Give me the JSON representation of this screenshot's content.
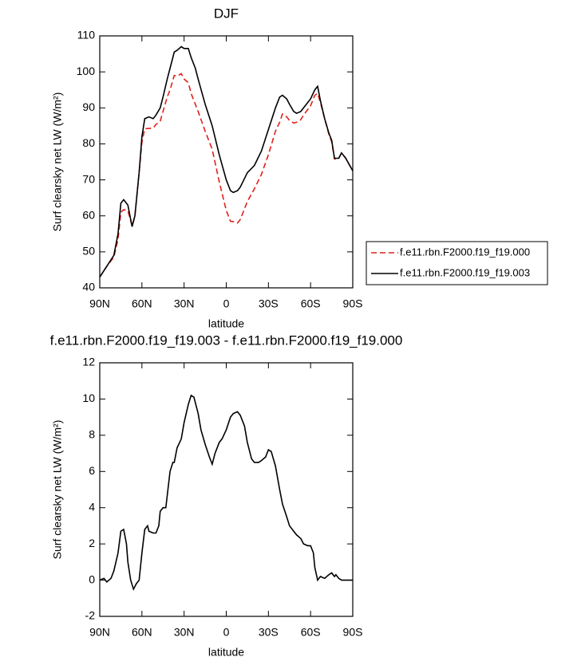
{
  "chart_data": [
    {
      "type": "line",
      "title": "DJF",
      "xlabel": "latitude",
      "ylabel": "Surf clearsky net LW (W/m²)",
      "x": [
        90,
        85,
        80,
        77,
        75,
        73,
        70,
        67,
        65,
        62,
        60,
        58,
        55,
        52,
        50,
        47,
        45,
        42,
        40,
        37,
        35,
        32,
        30,
        27,
        25,
        22,
        20,
        15,
        10,
        5,
        0,
        -3,
        -5,
        -8,
        -10,
        -15,
        -20,
        -25,
        -30,
        -35,
        -38,
        -40,
        -43,
        -45,
        -48,
        -50,
        -53,
        -55,
        -60,
        -63,
        -65,
        -67,
        -70,
        -73,
        -75,
        -77,
        -80,
        -82,
        -85,
        -90
      ],
      "series": [
        {
          "name": "f.e11.rbn.F2000.f19_f19.000",
          "color": "#e0201b",
          "line_style": "dashed",
          "values": [
            43,
            46,
            48.5,
            53.5,
            61,
            61.7,
            61.5,
            57.2,
            60,
            72,
            80.5,
            84.2,
            84.3,
            84.4,
            85.4,
            86.3,
            89,
            93,
            95,
            99,
            98.8,
            99.5,
            98,
            97,
            94,
            91,
            89,
            83.5,
            78.5,
            69.5,
            61.5,
            58.5,
            58.4,
            58,
            59,
            64,
            67.5,
            71.5,
            77,
            83.5,
            86,
            88.3,
            87.5,
            86.5,
            85.8,
            86,
            86.7,
            88,
            90.6,
            93.5,
            94,
            91.5,
            87,
            82.7,
            80.6,
            75.8,
            75.9,
            77.5,
            76,
            72.5
          ]
        },
        {
          "name": "f.e11.rbn.F2000.f19_f19.003",
          "color": "#000000",
          "line_style": "solid",
          "values": [
            43,
            46,
            49,
            55,
            63.5,
            64.5,
            63,
            57,
            60,
            72,
            82,
            87,
            87.5,
            87,
            88,
            90,
            93,
            98,
            101,
            105.5,
            106,
            107,
            106.5,
            106.5,
            104,
            101,
            98,
            91,
            85,
            77,
            70,
            67,
            66.5,
            67,
            68,
            72,
            74,
            78,
            84,
            90,
            93,
            93.5,
            92.5,
            91,
            89,
            88.5,
            89,
            90,
            92.5,
            95,
            96,
            92,
            87,
            83,
            81,
            76,
            76,
            77.5,
            76,
            72.5
          ]
        }
      ],
      "xlim": [
        90,
        -90
      ],
      "xticks": [
        {
          "value": 90,
          "label": "90N"
        },
        {
          "value": 60,
          "label": "60N"
        },
        {
          "value": 30,
          "label": "30N"
        },
        0,
        {
          "value": -30,
          "label": "30S"
        },
        {
          "value": -60,
          "label": "60S"
        },
        {
          "value": -90,
          "label": "90S"
        }
      ],
      "ylim": [
        40,
        110
      ],
      "yticks": [
        40,
        50,
        60,
        70,
        80,
        90,
        100,
        110
      ],
      "legend": "outside right"
    },
    {
      "type": "line",
      "title": "f.e11.rbn.F2000.f19_f19.003 - f.e11.rbn.F2000.f19_f19.000",
      "xlabel": "latitude",
      "ylabel": "Surf clearsky net LW (W/m²)",
      "x": [
        90,
        87,
        85,
        82,
        80,
        77,
        75,
        73,
        71,
        70,
        68,
        66,
        64,
        62,
        60,
        58,
        56,
        55,
        52,
        50,
        48,
        47,
        45,
        43,
        40,
        38,
        37,
        35,
        32,
        30,
        27,
        25,
        23,
        20,
        18,
        15,
        12,
        10,
        8,
        5,
        3,
        0,
        -3,
        -5,
        -8,
        -10,
        -13,
        -15,
        -18,
        -20,
        -23,
        -25,
        -28,
        -30,
        -32,
        -35,
        -38,
        -40,
        -43,
        -45,
        -48,
        -50,
        -53,
        -55,
        -58,
        -60,
        -62,
        -63,
        -65,
        -67,
        -70,
        -73,
        -75,
        -77,
        -78,
        -80,
        -82,
        -85,
        -90
      ],
      "series": [
        {
          "color": "#000000",
          "line_style": "solid",
          "values": [
            0,
            0.1,
            -0.1,
            0.1,
            0.5,
            1.5,
            2.7,
            2.8,
            2,
            1,
            0,
            -0.5,
            -0.2,
            0,
            1.5,
            2.8,
            3,
            2.7,
            2.6,
            2.6,
            3,
            3.8,
            4,
            4,
            6,
            6.5,
            6.5,
            7.3,
            7.8,
            8.7,
            9.7,
            10.2,
            10.1,
            9.2,
            8.3,
            7.5,
            6.8,
            6.4,
            7,
            7.6,
            7.8,
            8.3,
            9,
            9.2,
            9.3,
            9.1,
            8.5,
            7.6,
            6.7,
            6.5,
            6.5,
            6.6,
            6.8,
            7.2,
            7.1,
            6.3,
            5,
            4.2,
            3.5,
            3,
            2.7,
            2.5,
            2.3,
            2,
            1.9,
            1.9,
            1.5,
            0.7,
            0,
            0.2,
            0.1,
            0.3,
            0.4,
            0.2,
            0.3,
            0.1,
            0,
            0,
            0
          ]
        }
      ],
      "xlim": [
        90,
        -90
      ],
      "xticks": [
        {
          "value": 90,
          "label": "90N"
        },
        {
          "value": 60,
          "label": "60N"
        },
        {
          "value": 30,
          "label": "30N"
        },
        0,
        {
          "value": -30,
          "label": "30S"
        },
        {
          "value": -60,
          "label": "60S"
        },
        {
          "value": -90,
          "label": "90S"
        }
      ],
      "ylim": [
        -2,
        12
      ],
      "yticks": [
        -2,
        0,
        2,
        4,
        6,
        8,
        10,
        12
      ]
    }
  ]
}
